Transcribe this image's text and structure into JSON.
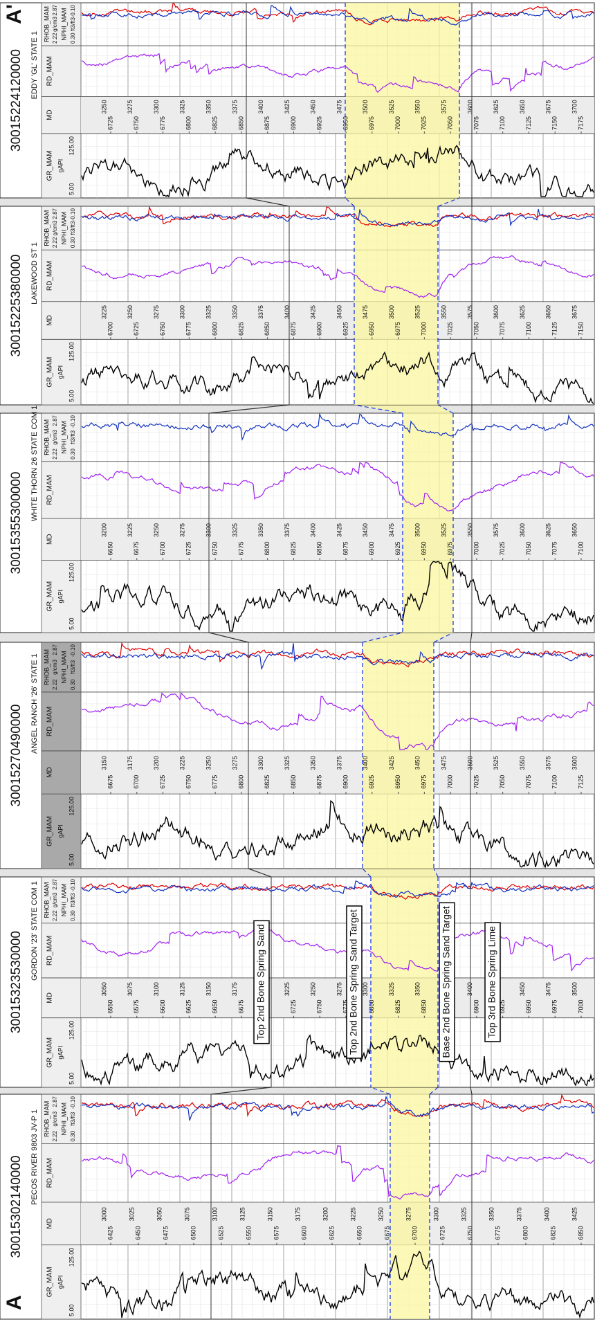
{
  "section": {
    "start": "A",
    "end": "A'"
  },
  "track_headers": {
    "gr": {
      "name": "GR_MAM",
      "min": "5.00",
      "unit": "gAPI",
      "max": "125.00"
    },
    "md": "MD",
    "rd": "RD_MAM",
    "rhob": {
      "name": "RHOB_MAM",
      "min": "2.22",
      "unit": "g/cm3",
      "max": "2.87"
    },
    "nphi": {
      "name": "NPHI_MAM",
      "min": "0.30",
      "unit": "ft3/ft3",
      "max": "-0.10"
    }
  },
  "wells": [
    {
      "api": "30015302140000",
      "name": "PECOS RIVER 9803 JV-P 1",
      "md_ticks": [
        "6425",
        "6450",
        "6475",
        "6500",
        "6525",
        "6550",
        "6575",
        "6600",
        "6625",
        "6650",
        "6675",
        "6700",
        "6725",
        "6750",
        "6775",
        "6800",
        "6825",
        "6850"
      ],
      "ss_ticks": [
        "3000",
        "3025",
        "3050",
        "3075",
        "3100",
        "3125",
        "3150",
        "3175",
        "3200",
        "3225",
        "3250",
        "3275",
        "3300",
        "3325",
        "3350",
        "3375",
        "3400",
        "3425"
      ]
    },
    {
      "api": "30015323530000",
      "name": "GORDON '23' STATE COM 1",
      "md_ticks": [
        "6550",
        "6575",
        "6600",
        "6625",
        "6650",
        "6675",
        "6700",
        "6725",
        "6750",
        "6775",
        "6800",
        "6825",
        "6850",
        "6875",
        "6900",
        "6925",
        "6950",
        "6975",
        "7000"
      ],
      "ss_ticks": [
        "3050",
        "3075",
        "3100",
        "3125",
        "3150",
        "3175",
        "3200",
        "3225",
        "3250",
        "3275",
        "3300",
        "3325",
        "3350",
        "3375",
        "3400",
        "3425",
        "3450",
        "3475",
        "3500"
      ]
    },
    {
      "api": "30015270490000",
      "name": "ANGEL RANCH '26' STATE 1",
      "md_ticks": [
        "6675",
        "6700",
        "6725",
        "6750",
        "6775",
        "6800",
        "6825",
        "6850",
        "6875",
        "6900",
        "6925",
        "6950",
        "6975",
        "7000",
        "7025",
        "7050",
        "7075",
        "7100",
        "7125"
      ],
      "ss_ticks": [
        "3150",
        "3175",
        "3200",
        "3225",
        "3250",
        "3275",
        "3300",
        "3325",
        "3350",
        "3375",
        "3400",
        "3425",
        "3450",
        "3475",
        "3500",
        "3525",
        "3550",
        "3575",
        "3600"
      ]
    },
    {
      "api": "30015355300000",
      "name": "WHITE THORN 26 STATE COM 1",
      "md_ticks": [
        "6650",
        "6675",
        "6700",
        "6725",
        "6750",
        "6775",
        "6800",
        "6825",
        "6850",
        "6875",
        "6900",
        "6925",
        "6950",
        "6975",
        "7000",
        "7025",
        "7050",
        "7075",
        "7100"
      ],
      "ss_ticks": [
        "3200",
        "3225",
        "3250",
        "3275",
        "3300",
        "3325",
        "3350",
        "3375",
        "3400",
        "3425",
        "3450",
        "3475",
        "3500",
        "3525",
        "3550",
        "3575",
        "3600",
        "3625",
        "3650"
      ]
    },
    {
      "api": "30015225380000",
      "name": "LAKEWOOD ST 1",
      "md_ticks": [
        "6700",
        "6725",
        "6750",
        "6775",
        "6800",
        "6825",
        "6850",
        "6875",
        "6900",
        "6925",
        "6950",
        "6975",
        "7000",
        "7025",
        "7050",
        "7075",
        "7100",
        "7125",
        "7150"
      ],
      "ss_ticks": [
        "3225",
        "3250",
        "3275",
        "3300",
        "3325",
        "3350",
        "3375",
        "3400",
        "3425",
        "3450",
        "3475",
        "3500",
        "3525",
        "3550",
        "3575",
        "3600",
        "3625",
        "3650",
        "3675"
      ]
    },
    {
      "api": "30015224120000",
      "name": "EDDY 'GL' STATE 1",
      "md_ticks": [
        "6725",
        "6750",
        "6775",
        "6800",
        "6825",
        "6850",
        "6875",
        "6900",
        "6925",
        "6950",
        "6975",
        "7000",
        "7025",
        "7050",
        "7075",
        "7100",
        "7125",
        "7150",
        "7175"
      ],
      "ss_ticks": [
        "3250",
        "3275",
        "3300",
        "3325",
        "3350",
        "3375",
        "3400",
        "3425",
        "3450",
        "3475",
        "3500",
        "3525",
        "3550",
        "3575",
        "3600",
        "3625",
        "3650",
        "3675",
        "3700"
      ]
    }
  ],
  "tops": [
    "Top 2nd Bone Spring Sand",
    "Top 2nd Bone Spring Sand Target",
    "Base 2nd Bone Spring Sand Target",
    "Top 3rd Bone Spring Lime"
  ]
}
